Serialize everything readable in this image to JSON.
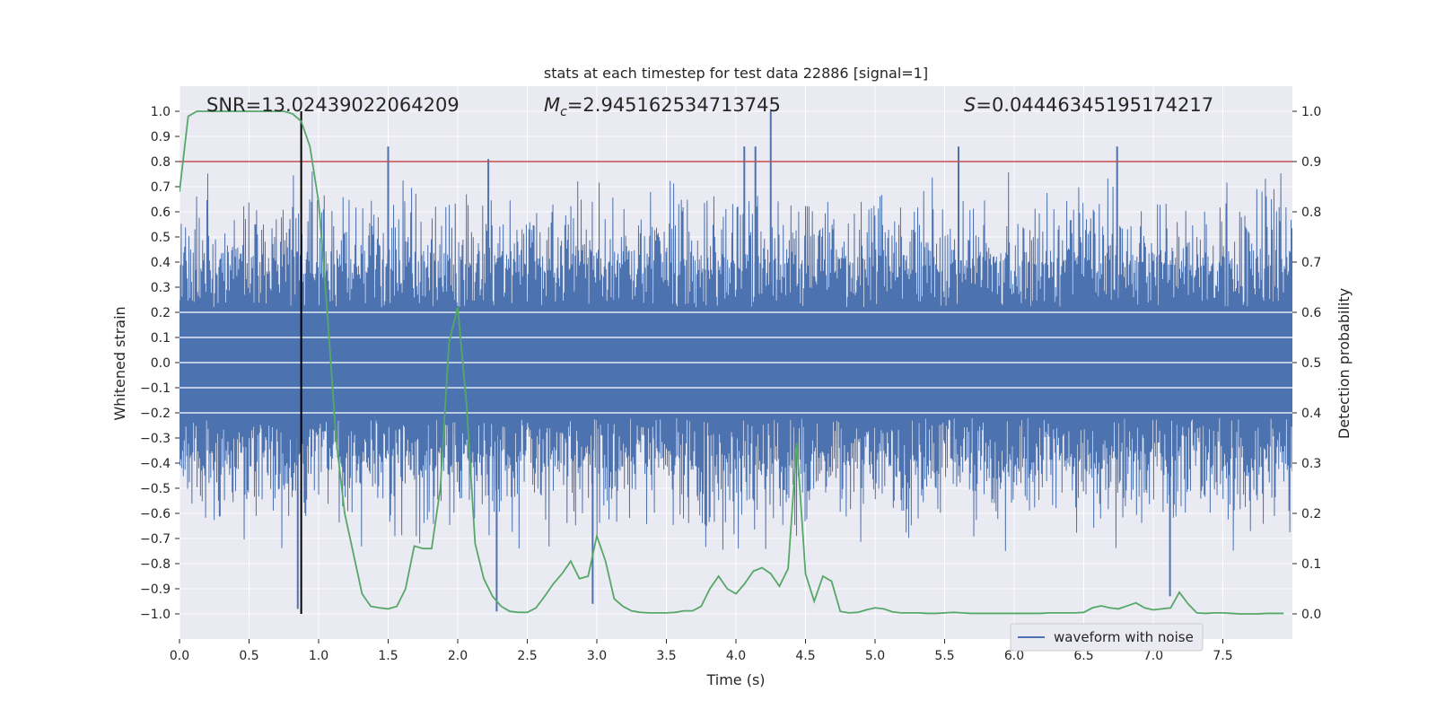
{
  "chart_data": {
    "type": "line",
    "title": "stats at each timestep for test data 22886 [signal=1]",
    "xlabel": "Time (s)",
    "ylabel": "Whitened strain",
    "y2label": "Detection probability",
    "xlim": [
      0,
      8
    ],
    "ylim": [
      -1.1,
      1.1
    ],
    "y2lim": [
      -0.05,
      1.05
    ],
    "xticks": [
      0.0,
      0.5,
      1.0,
      1.5,
      2.0,
      2.5,
      3.0,
      3.5,
      4.0,
      4.5,
      5.0,
      5.5,
      6.0,
      6.5,
      7.0,
      7.5
    ],
    "xtick_labels": [
      "0.0",
      "0.5",
      "1.0",
      "1.5",
      "2.0",
      "2.5",
      "3.0",
      "3.5",
      "4.0",
      "4.5",
      "5.0",
      "5.5",
      "6.0",
      "6.5",
      "7.0",
      "7.5"
    ],
    "yticks": [
      1.0,
      0.9,
      0.8,
      0.7,
      0.6,
      0.5,
      0.4,
      0.3,
      0.2,
      0.1,
      0.0,
      -0.1,
      -0.2,
      -0.3,
      -0.4,
      -0.5,
      -0.6,
      -0.7,
      -0.8,
      -0.9,
      -1.0
    ],
    "ytick_labels": [
      "1.0",
      "0.9",
      "0.8",
      "0.7",
      "0.6",
      "0.5",
      "0.4",
      "0.3",
      "0.2",
      "0.1",
      "0.0",
      "−0.1",
      "−0.2",
      "−0.3",
      "−0.4",
      "−0.5",
      "−0.6",
      "−0.7",
      "−0.8",
      "−0.9",
      "−1.0"
    ],
    "y2ticks": [
      1.0,
      0.9,
      0.8,
      0.7,
      0.6,
      0.5,
      0.4,
      0.3,
      0.2,
      0.1,
      0.0
    ],
    "y2tick_labels": [
      "1.0",
      "0.9",
      "0.8",
      "0.7",
      "0.6",
      "0.5",
      "0.4",
      "0.3",
      "0.2",
      "0.1",
      "0.0"
    ],
    "grid": true,
    "legend_position": "bottom-right",
    "legend": [
      {
        "label": "waveform with noise",
        "color": "#4c72b0"
      }
    ],
    "annotations": {
      "snr": "SNR=13.02439022064209",
      "mc_symbol": "M",
      "mc_sub": "c",
      "mc_value": "=2.945162534713745",
      "s_symbol": "S",
      "s_value": "=0.04446345195174217"
    },
    "threshold_line": {
      "y2": 0.9,
      "color": "#c44e52"
    },
    "marker_line": {
      "x": 0.875,
      "color": "#000000"
    },
    "waveform": {
      "color": "#4c72b0",
      "sample_rate": 2048,
      "duration": 8.0,
      "seed": 22886,
      "dense_band": 0.22,
      "max_pos": 1.0,
      "max_neg": -0.99,
      "representative_peaks": [
        {
          "x": 1.5,
          "y": 0.86
        },
        {
          "x": 2.22,
          "y": 0.81
        },
        {
          "x": 4.06,
          "y": 0.86
        },
        {
          "x": 4.25,
          "y": 1.0
        },
        {
          "x": 4.14,
          "y": 0.86
        },
        {
          "x": 5.6,
          "y": 0.86
        },
        {
          "x": 6.74,
          "y": 0.86
        },
        {
          "x": 2.28,
          "y": -0.99
        },
        {
          "x": 0.85,
          "y": -0.98
        },
        {
          "x": 2.97,
          "y": -0.96
        },
        {
          "x": 7.12,
          "y": -0.93
        }
      ]
    },
    "probability": {
      "color": "#55a868",
      "x": [
        0.0,
        0.0625,
        0.125,
        0.1875,
        0.25,
        0.3125,
        0.375,
        0.4375,
        0.5,
        0.5625,
        0.625,
        0.6875,
        0.75,
        0.8125,
        0.875,
        0.9375,
        1.0,
        1.0625,
        1.125,
        1.1875,
        1.25,
        1.3125,
        1.375,
        1.4375,
        1.5,
        1.5625,
        1.625,
        1.6875,
        1.75,
        1.8125,
        1.875,
        1.9375,
        2.0,
        2.0625,
        2.125,
        2.1875,
        2.25,
        2.3125,
        2.375,
        2.4375,
        2.5,
        2.5625,
        2.625,
        2.6875,
        2.75,
        2.8125,
        2.875,
        2.9375,
        3.0,
        3.0625,
        3.125,
        3.1875,
        3.25,
        3.3125,
        3.375,
        3.4375,
        3.5,
        3.5625,
        3.625,
        3.6875,
        3.75,
        3.8125,
        3.875,
        3.9375,
        4.0,
        4.0625,
        4.125,
        4.1875,
        4.25,
        4.3125,
        4.375,
        4.4375,
        4.5,
        4.5625,
        4.625,
        4.6875,
        4.75,
        4.8125,
        4.875,
        4.9375,
        5.0,
        5.0625,
        5.125,
        5.1875,
        5.25,
        5.3125,
        5.375,
        5.4375,
        5.5,
        5.5625,
        5.625,
        5.6875,
        5.75,
        5.8125,
        5.875,
        5.9375,
        6.0,
        6.0625,
        6.125,
        6.1875,
        6.25,
        6.3125,
        6.375,
        6.4375,
        6.5,
        6.5625,
        6.625,
        6.6875,
        6.75,
        6.8125,
        6.875,
        6.9375,
        7.0,
        7.0625,
        7.125,
        7.1875,
        7.25,
        7.3125,
        7.375,
        7.4375,
        7.5,
        7.5625,
        7.625,
        7.6875,
        7.75,
        7.8125,
        7.875,
        7.9375
      ],
      "y": [
        0.84,
        0.99,
        1.0,
        1.0,
        1.0,
        1.0,
        1.0,
        1.0,
        1.0,
        1.0,
        1.0,
        1.0,
        1.0,
        0.995,
        0.98,
        0.93,
        0.82,
        0.6,
        0.35,
        0.2,
        0.12,
        0.04,
        0.015,
        0.012,
        0.01,
        0.015,
        0.05,
        0.135,
        0.13,
        0.13,
        0.25,
        0.54,
        0.61,
        0.42,
        0.14,
        0.07,
        0.035,
        0.015,
        0.005,
        0.003,
        0.003,
        0.012,
        0.035,
        0.06,
        0.08,
        0.105,
        0.07,
        0.075,
        0.155,
        0.105,
        0.03,
        0.015,
        0.006,
        0.003,
        0.002,
        0.002,
        0.002,
        0.003,
        0.006,
        0.006,
        0.015,
        0.05,
        0.075,
        0.05,
        0.04,
        0.06,
        0.085,
        0.092,
        0.08,
        0.055,
        0.09,
        0.34,
        0.08,
        0.025,
        0.075,
        0.065,
        0.005,
        0.002,
        0.003,
        0.008,
        0.012,
        0.01,
        0.004,
        0.002,
        0.002,
        0.002,
        0.001,
        0.001,
        0.002,
        0.003,
        0.002,
        0.001,
        0.001,
        0.001,
        0.001,
        0.001,
        0.001,
        0.001,
        0.001,
        0.001,
        0.002,
        0.002,
        0.002,
        0.002,
        0.003,
        0.012,
        0.016,
        0.012,
        0.01,
        0.016,
        0.022,
        0.012,
        0.008,
        0.01,
        0.012,
        0.043,
        0.02,
        0.002,
        0.001,
        0.002,
        0.002,
        0.001,
        0.0,
        0.0,
        0.0,
        0.001,
        0.001,
        0.001
      ]
    }
  }
}
